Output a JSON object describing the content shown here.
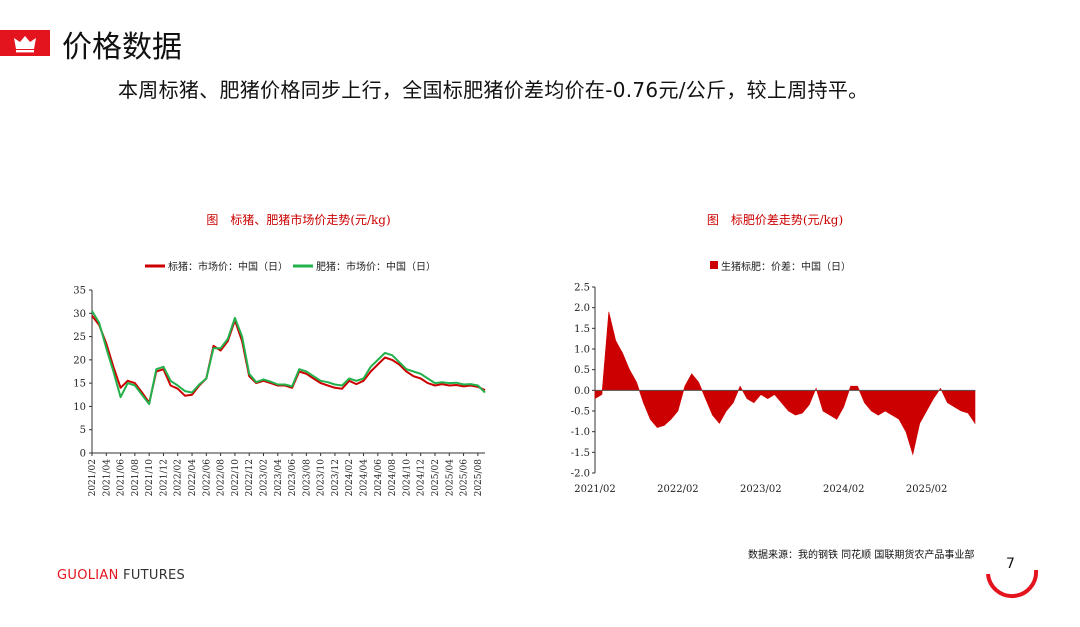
{
  "header": {
    "title": "价格数据",
    "subtitle": "本周标猪、肥猪价格同步上行，全国标肥猪价差均价在-0.76元/公斤，较上周持平。"
  },
  "footer": {
    "source": "数据来源：我的钢铁 同花顺 国联期货农产品事业部",
    "brand_part1": "GUOLIAN",
    "brand_part2": " FUTURES",
    "page_number": "7"
  },
  "colors": {
    "brand_red": "#e3141e",
    "series_red": "#cc0000",
    "series_green": "#22b14c"
  },
  "icons": {
    "header_icon": "crown-icon"
  },
  "chart_data": [
    {
      "type": "line",
      "title": "图　标猪、肥猪市场价走势(元/kg)",
      "legend_position": "top",
      "ylim": [
        0,
        35
      ],
      "yticks": [
        "35",
        "30",
        "25",
        "20",
        "15",
        "10",
        "5",
        "0"
      ],
      "xticks": [
        "2021/02",
        "2021/04",
        "2021/06",
        "2021/08",
        "2021/10",
        "2021/12",
        "2022/02",
        "2022/04",
        "2022/06",
        "2022/08",
        "2022/10",
        "2022/12",
        "2023/02",
        "2023/04",
        "2023/06",
        "2023/08",
        "2023/10",
        "2023/12",
        "2024/02",
        "2024/04",
        "2024/06",
        "2024/08",
        "2024/10",
        "2024/12",
        "2025/02",
        "2025/04",
        "2025/06",
        "2025/08"
      ],
      "grid": false,
      "series": [
        {
          "name": "标猪：市场价：中国（日）",
          "color": "#cc0000",
          "x": [
            "2021/02",
            "2021/03",
            "2021/04",
            "2021/05",
            "2021/06",
            "2021/07",
            "2021/08",
            "2021/09",
            "2021/10",
            "2021/11",
            "2021/12",
            "2022/01",
            "2022/02",
            "2022/03",
            "2022/04",
            "2022/05",
            "2022/06",
            "2022/07",
            "2022/08",
            "2022/09",
            "2022/10",
            "2022/11",
            "2022/12",
            "2023/01",
            "2023/02",
            "2023/03",
            "2023/04",
            "2023/05",
            "2023/06",
            "2023/07",
            "2023/08",
            "2023/09",
            "2023/10",
            "2023/11",
            "2023/12",
            "2024/01",
            "2024/02",
            "2024/03",
            "2024/04",
            "2024/05",
            "2024/06",
            "2024/07",
            "2024/08",
            "2024/09",
            "2024/10",
            "2024/11",
            "2024/12",
            "2025/01",
            "2025/02",
            "2025/03",
            "2025/04",
            "2025/05",
            "2025/06",
            "2025/07",
            "2025/08",
            "2025/09"
          ],
          "y": [
            29.5,
            27.5,
            23.5,
            18.5,
            14.0,
            15.5,
            15.0,
            13.0,
            10.8,
            17.5,
            18.0,
            14.5,
            13.8,
            12.3,
            12.5,
            14.5,
            16.0,
            23.0,
            22.0,
            24.0,
            28.5,
            24.0,
            16.5,
            15.0,
            15.5,
            15.0,
            14.5,
            14.5,
            14.0,
            17.5,
            17.0,
            16.0,
            15.0,
            14.5,
            14.0,
            13.8,
            15.5,
            14.8,
            15.5,
            17.5,
            19.0,
            20.5,
            20.0,
            19.0,
            17.5,
            16.5,
            16.0,
            15.0,
            14.5,
            14.8,
            14.5,
            14.6,
            14.3,
            14.5,
            14.2,
            13.5
          ]
        },
        {
          "name": "肥猪：市场价：中国（日）",
          "color": "#22b14c",
          "x": [
            "2021/02",
            "2021/03",
            "2021/04",
            "2021/05",
            "2021/06",
            "2021/07",
            "2021/08",
            "2021/09",
            "2021/10",
            "2021/11",
            "2021/12",
            "2022/01",
            "2022/02",
            "2022/03",
            "2022/04",
            "2022/05",
            "2022/06",
            "2022/07",
            "2022/08",
            "2022/09",
            "2022/10",
            "2022/11",
            "2022/12",
            "2023/01",
            "2023/02",
            "2023/03",
            "2023/04",
            "2023/05",
            "2023/06",
            "2023/07",
            "2023/08",
            "2023/09",
            "2023/10",
            "2023/11",
            "2023/12",
            "2024/01",
            "2024/02",
            "2024/03",
            "2024/04",
            "2024/05",
            "2024/06",
            "2024/07",
            "2024/08",
            "2024/09",
            "2024/10",
            "2024/11",
            "2024/12",
            "2025/01",
            "2025/02",
            "2025/03",
            "2025/04",
            "2025/05",
            "2025/06",
            "2025/07",
            "2025/08",
            "2025/09"
          ],
          "y": [
            30.5,
            28.0,
            22.5,
            17.5,
            12.0,
            15.0,
            14.5,
            12.5,
            10.5,
            18.0,
            18.5,
            15.5,
            14.5,
            13.3,
            13.0,
            14.7,
            16.0,
            22.5,
            22.5,
            24.5,
            29.0,
            25.0,
            17.0,
            15.2,
            15.8,
            15.3,
            14.7,
            14.7,
            14.3,
            18.0,
            17.5,
            16.5,
            15.5,
            15.2,
            14.7,
            14.5,
            16.0,
            15.5,
            16.0,
            18.5,
            20.0,
            21.5,
            21.0,
            19.5,
            18.0,
            17.5,
            17.0,
            16.0,
            15.0,
            15.2,
            15.0,
            15.1,
            14.7,
            14.8,
            14.5,
            13.0
          ]
        }
      ]
    },
    {
      "type": "area",
      "title": "图　标肥价差走势(元/kg)",
      "legend_position": "top",
      "ylim": [
        -2.0,
        2.5
      ],
      "yticks": [
        "2.5",
        "2.0",
        "1.5",
        "1.0",
        "0.5",
        "0.0",
        "-0.5",
        "-1.0",
        "-1.5",
        "-2.0"
      ],
      "xticks": [
        "2021/02",
        "2022/02",
        "2023/02",
        "2024/02",
        "2025/02"
      ],
      "grid": false,
      "series": [
        {
          "name": "生猪标肥：价差：中国（日）",
          "color": "#cc0000",
          "x": [
            "2021/02",
            "2021/03",
            "2021/04",
            "2021/05",
            "2021/06",
            "2021/07",
            "2021/08",
            "2021/09",
            "2021/10",
            "2021/11",
            "2021/12",
            "2022/01",
            "2022/02",
            "2022/03",
            "2022/04",
            "2022/05",
            "2022/06",
            "2022/07",
            "2022/08",
            "2022/09",
            "2022/10",
            "2022/11",
            "2022/12",
            "2023/01",
            "2023/02",
            "2023/03",
            "2023/04",
            "2023/05",
            "2023/06",
            "2023/07",
            "2023/08",
            "2023/09",
            "2023/10",
            "2023/11",
            "2023/12",
            "2024/01",
            "2024/02",
            "2024/03",
            "2024/04",
            "2024/05",
            "2024/06",
            "2024/07",
            "2024/08",
            "2024/09",
            "2024/10",
            "2024/11",
            "2024/12",
            "2025/01",
            "2025/02",
            "2025/03",
            "2025/04",
            "2025/05",
            "2025/06",
            "2025/07",
            "2025/08",
            "2025/09"
          ],
          "y": [
            -0.2,
            -0.1,
            1.9,
            1.2,
            0.9,
            0.5,
            0.2,
            -0.3,
            -0.7,
            -0.9,
            -0.85,
            -0.7,
            -0.5,
            0.1,
            0.4,
            0.2,
            -0.2,
            -0.6,
            -0.8,
            -0.5,
            -0.3,
            0.1,
            -0.2,
            -0.3,
            -0.1,
            -0.2,
            -0.1,
            -0.3,
            -0.5,
            -0.6,
            -0.55,
            -0.35,
            0.05,
            -0.5,
            -0.6,
            -0.7,
            -0.4,
            0.1,
            0.1,
            -0.3,
            -0.5,
            -0.6,
            -0.5,
            -0.6,
            -0.7,
            -1.0,
            -1.55,
            -0.8,
            -0.5,
            -0.2,
            0.05,
            -0.3,
            -0.4,
            -0.5,
            -0.55,
            -0.8
          ]
        }
      ]
    }
  ]
}
